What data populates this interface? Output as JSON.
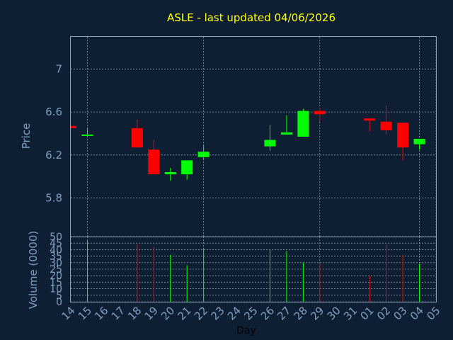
{
  "chart_data": {
    "type": "candlestick",
    "title": "ASLE - last updated 04/06/2026",
    "ylabel": "Price",
    "volume_ylabel": "Volume (0000)",
    "xlabel": "Day",
    "price_ylim": [
      5.44,
      7.3
    ],
    "price_yticks": [
      "5.8",
      "6.2",
      "6.6",
      "7"
    ],
    "volume_ylim": [
      0,
      50
    ],
    "volume_yticks": [
      "0",
      "5",
      "10",
      "15",
      "20",
      "25",
      "30",
      "35",
      "40",
      "45",
      "50"
    ],
    "x_tick_labels": [
      "14",
      "15",
      "16",
      "17",
      "18",
      "19",
      "20",
      "21",
      "22",
      "23",
      "24",
      "25",
      "26",
      "27",
      "28",
      "29",
      "30",
      "31",
      "01",
      "02",
      "03",
      "04",
      "05"
    ],
    "up_color": "#00ff00",
    "down_color": "#ff0000",
    "candles": [
      {
        "x": "14",
        "open": 6.47,
        "close": 6.45,
        "high": 6.47,
        "low": 6.45,
        "volume": 0
      },
      {
        "x": "15",
        "open": 6.38,
        "close": 6.39,
        "high": 6.45,
        "low": 6.38,
        "volume": 47
      },
      {
        "x": "18",
        "open": 6.45,
        "close": 6.27,
        "high": 6.53,
        "low": 6.27,
        "volume": 44
      },
      {
        "x": "19",
        "open": 6.25,
        "close": 6.02,
        "high": 6.34,
        "low": 6.02,
        "volume": 42
      },
      {
        "x": "20",
        "open": 6.02,
        "close": 6.04,
        "high": 6.08,
        "low": 5.96,
        "volume": 36
      },
      {
        "x": "21",
        "open": 6.02,
        "close": 6.15,
        "high": 6.15,
        "low": 5.97,
        "volume": 28
      },
      {
        "x": "22",
        "open": 6.18,
        "close": 6.23,
        "high": 6.29,
        "low": 6.16,
        "volume": 41
      },
      {
        "x": "26",
        "open": 6.28,
        "close": 6.34,
        "high": 6.48,
        "low": 6.24,
        "volume": 40
      },
      {
        "x": "27",
        "open": 6.39,
        "close": 6.41,
        "high": 6.57,
        "low": 6.39,
        "volume": 39
      },
      {
        "x": "28",
        "open": 6.37,
        "close": 6.61,
        "high": 6.63,
        "low": 6.37,
        "volume": 30
      },
      {
        "x": "29",
        "open": 6.61,
        "close": 6.58,
        "high": 6.64,
        "low": 6.51,
        "volume": 29
      },
      {
        "x": "01",
        "open": 6.54,
        "close": 6.52,
        "high": 6.54,
        "low": 6.42,
        "volume": 20
      },
      {
        "x": "02",
        "open": 6.51,
        "close": 6.43,
        "high": 6.66,
        "low": 6.39,
        "volume": 44
      },
      {
        "x": "03",
        "open": 6.5,
        "close": 6.27,
        "high": 6.5,
        "low": 6.15,
        "volume": 36
      },
      {
        "x": "04",
        "open": 6.3,
        "close": 6.35,
        "high": 6.35,
        "low": 6.25,
        "volume": 29
      }
    ]
  }
}
